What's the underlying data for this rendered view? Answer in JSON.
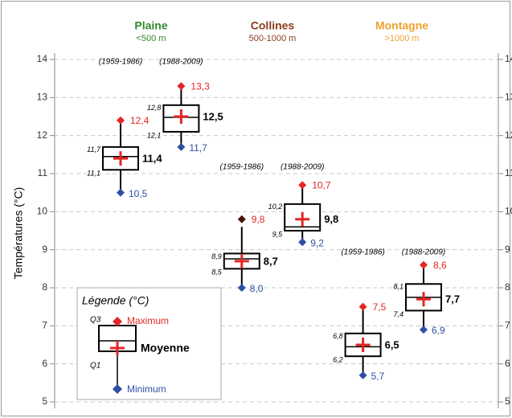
{
  "chart_data": {
    "type": "box",
    "ylabel": "Températures (°C)",
    "ylim": [
      5,
      14
    ],
    "yticks": [
      5,
      6,
      7,
      8,
      9,
      10,
      11,
      12,
      13,
      14
    ],
    "grid": true,
    "colors": {
      "max": "#e32626",
      "min": "#2f4fa3",
      "mean": "#e32626",
      "box": "#000000"
    },
    "groups": [
      {
        "name": "Plaine",
        "subtitle": "<500 m",
        "color": "#2e8b2e",
        "boxes": [
          {
            "period": "(1959-1986)",
            "min": 10.5,
            "q1": 11.1,
            "median": 11.45,
            "q3": 11.7,
            "max": 12.4,
            "whisker_high": 12.4,
            "mean": 11.4,
            "labels": {
              "min": "10,5",
              "q1": "11,1",
              "q3": "11,7",
              "mean": "11,4",
              "max": "12,4"
            }
          },
          {
            "period": "(1988-2009)",
            "min": 11.7,
            "q1": 12.1,
            "median": 12.48,
            "q3": 12.8,
            "max": 13.3,
            "whisker_high": 13.3,
            "mean": 12.5,
            "labels": {
              "min": "11,7",
              "q1": "12,1",
              "q3": "12,8",
              "mean": "12,5",
              "max": "13,3"
            }
          }
        ]
      },
      {
        "name": "Collines",
        "subtitle": "500-1000 m",
        "color": "#8b3a1c",
        "boxes": [
          {
            "period": "(1959-1986)",
            "min": 8.0,
            "q1": 8.5,
            "median": 8.76,
            "q3": 8.9,
            "max": 9.8,
            "whisker_high": 9.6,
            "max_color": "#4a1208",
            "mean": 8.7,
            "labels": {
              "min": "8,0",
              "q1": "8,5",
              "q3": "8,9",
              "mean": "8,7",
              "max": "9,8"
            }
          },
          {
            "period": "(1988-2009)",
            "min": 9.2,
            "q1": 9.5,
            "median": 9.6,
            "q3": 10.2,
            "max": 10.7,
            "whisker_high": 10.7,
            "mean": 9.8,
            "labels": {
              "min": "9,2",
              "q1": "9,5",
              "q3": "10,2",
              "mean": "9,8",
              "max": "10,7"
            }
          }
        ]
      },
      {
        "name": "Montagne",
        "subtitle": ">1000 m",
        "color": "#f0a030",
        "boxes": [
          {
            "period": "(1959-1986)",
            "min": 5.7,
            "q1": 6.2,
            "median": 6.45,
            "q3": 6.8,
            "max": 7.5,
            "whisker_high": 7.5,
            "mean": 6.5,
            "labels": {
              "min": "5,7",
              "q1": "6,2",
              "q3": "6,8",
              "mean": "6,5",
              "max": "7,5"
            }
          },
          {
            "period": "(1988-2009)",
            "min": 6.9,
            "q1": 7.4,
            "median": 7.75,
            "q3": 8.1,
            "max": 8.6,
            "whisker_high": 8.6,
            "mean": 7.7,
            "labels": {
              "min": "6,9",
              "q1": "7,4",
              "q3": "8,1",
              "mean": "7,7",
              "max": "8,6"
            }
          }
        ]
      }
    ],
    "legend": {
      "title": "Légende (°C)",
      "maximum": "Maximum",
      "q3": "Q3",
      "mean": "Moyenne",
      "q1": "Q1",
      "minimum": "Minimum"
    }
  }
}
